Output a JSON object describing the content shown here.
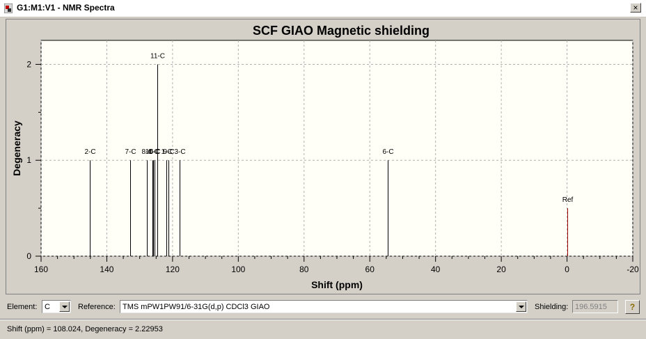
{
  "window": {
    "title": "G1:M1:V1 - NMR Spectra",
    "close_glyph": "×",
    "icon": "gaussview-app-icon"
  },
  "chart_data": {
    "type": "bar",
    "title": "SCF GIAO Magnetic shielding",
    "xlabel": "Shift (ppm)",
    "ylabel": "Degeneracy",
    "xlim": [
      160,
      -20
    ],
    "ylim": [
      0,
      2.25
    ],
    "x_reversed": true,
    "grid": true,
    "xticks": [
      160,
      140,
      120,
      100,
      80,
      60,
      40,
      20,
      0,
      -20
    ],
    "yticks": [
      0,
      1,
      2
    ],
    "peaks": [
      {
        "label": "2-C",
        "x": 145.2,
        "y": 1
      },
      {
        "label": "7-C",
        "x": 132.8,
        "y": 1
      },
      {
        "label": "8-C",
        "x": 127.8,
        "y": 1
      },
      {
        "label": "10-C",
        "x": 126.2,
        "y": 1
      },
      {
        "label": "4-C",
        "x": 125.9,
        "y": 1
      },
      {
        "label": "5-C",
        "x": 125.5,
        "y": 1
      },
      {
        "label": "11-C",
        "x": 124.6,
        "y": 2
      },
      {
        "label": "1-C",
        "x": 121.8,
        "y": 1
      },
      {
        "label": "9-C",
        "x": 121.3,
        "y": 1
      },
      {
        "label": "3-C",
        "x": 117.9,
        "y": 1
      },
      {
        "label": "6-C",
        "x": 54.5,
        "y": 1
      },
      {
        "label": "Ref",
        "x": 0,
        "y": 0.5,
        "color": "#a00000"
      }
    ]
  },
  "controls": {
    "element_label": "Element:",
    "element_value": "C",
    "reference_label": "Reference:",
    "reference_value": "TMS mPW1PW91/6-31G(d,p) CDCl3 GIAO",
    "shielding_label": "Shielding:",
    "shielding_value": "196.5915",
    "help_glyph": "?"
  },
  "status": {
    "text": "Shift (ppm) = 108.024,  Degeneracy = 2.22953"
  }
}
